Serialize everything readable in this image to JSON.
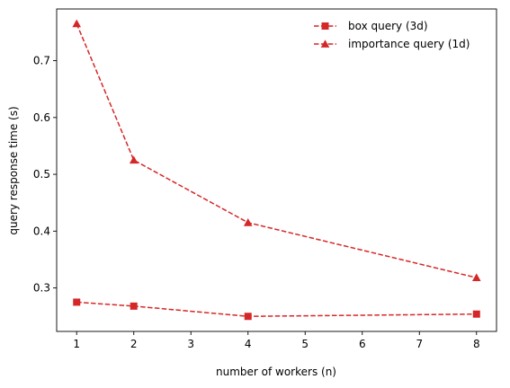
{
  "chart_data": {
    "type": "line",
    "title": "",
    "xlabel": "number of workers (n)",
    "ylabel": "query response time (s)",
    "xlim": [
      0.65,
      8.35
    ],
    "ylim": [
      0.2235,
      0.791
    ],
    "x_ticks": [
      1,
      2,
      3,
      4,
      5,
      6,
      7,
      8
    ],
    "y_ticks": [
      0.3,
      0.4,
      0.5,
      0.6,
      0.7
    ],
    "x_tick_labels": [
      "1",
      "2",
      "3",
      "4",
      "5",
      "6",
      "7",
      "8"
    ],
    "y_tick_labels": [
      "0.3",
      "0.4",
      "0.5",
      "0.6",
      "0.7"
    ],
    "grid": false,
    "legend_position": "top-right",
    "series": [
      {
        "name": "box query (3d)",
        "marker": "square",
        "line_style": "dashed",
        "color": "#d62728",
        "x": [
          1,
          2,
          4,
          8
        ],
        "y": [
          0.275,
          0.268,
          0.25,
          0.254
        ]
      },
      {
        "name": "importance query (1d)",
        "marker": "triangle",
        "line_style": "dashed",
        "color": "#d62728",
        "x": [
          1,
          2,
          4,
          8
        ],
        "y": [
          0.765,
          0.525,
          0.415,
          0.318
        ]
      }
    ]
  }
}
